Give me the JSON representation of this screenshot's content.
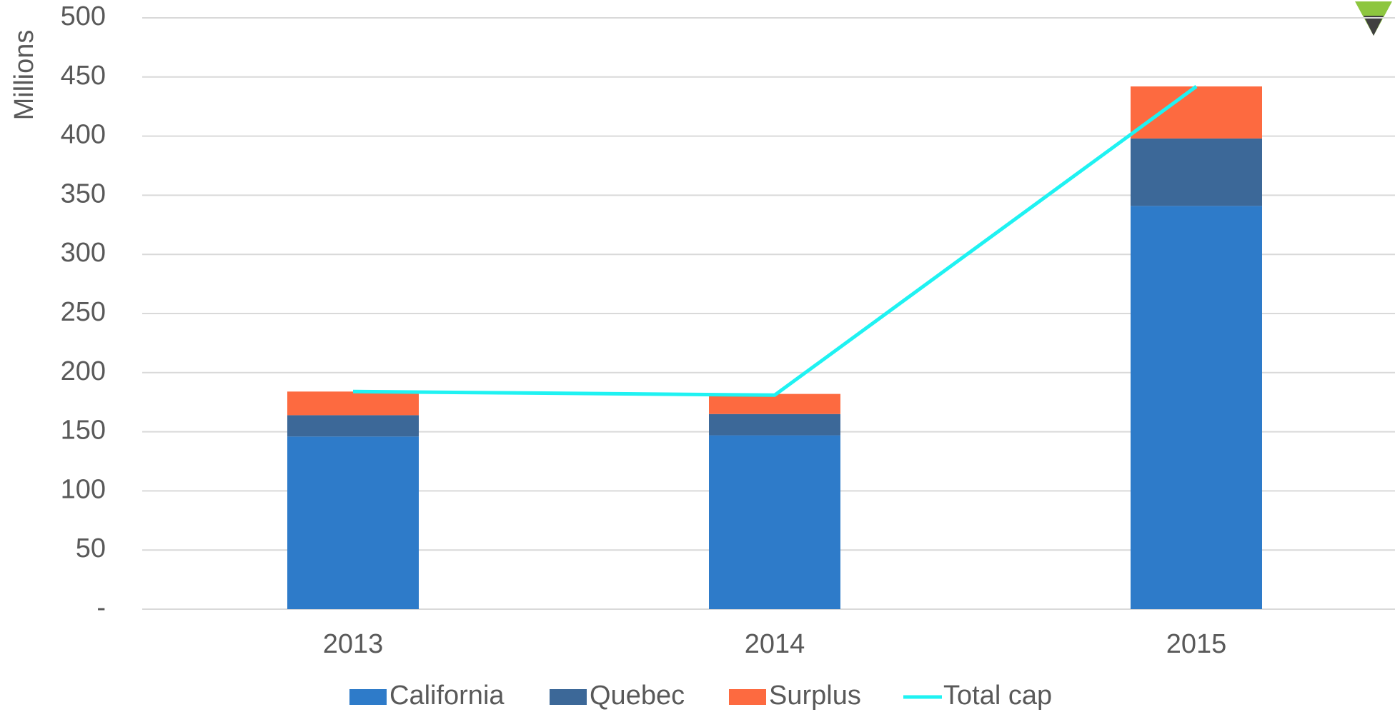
{
  "chart_data": {
    "type": "bar",
    "stacked": true,
    "categories": [
      "2013",
      "2014",
      "2015"
    ],
    "ylabel": "Millions",
    "series": [
      {
        "name": "California",
        "color": "#2e7bc9",
        "values": [
          146,
          147,
          341
        ]
      },
      {
        "name": "Quebec",
        "color": "#3c6898",
        "values": [
          18,
          18,
          57
        ]
      },
      {
        "name": "Surplus",
        "color": "#fd6a40",
        "values": [
          20,
          17,
          44
        ]
      },
      {
        "name": "Total cap",
        "color": "#1ff2f2",
        "type": "line",
        "values": [
          184,
          181,
          442
        ]
      }
    ],
    "ylim": [
      0,
      500
    ],
    "yticks": [
      {
        "value": 0,
        "label": "-"
      },
      50,
      100,
      150,
      200,
      250,
      300,
      350,
      400,
      450,
      500
    ],
    "grid": true,
    "legend": "bottom"
  }
}
